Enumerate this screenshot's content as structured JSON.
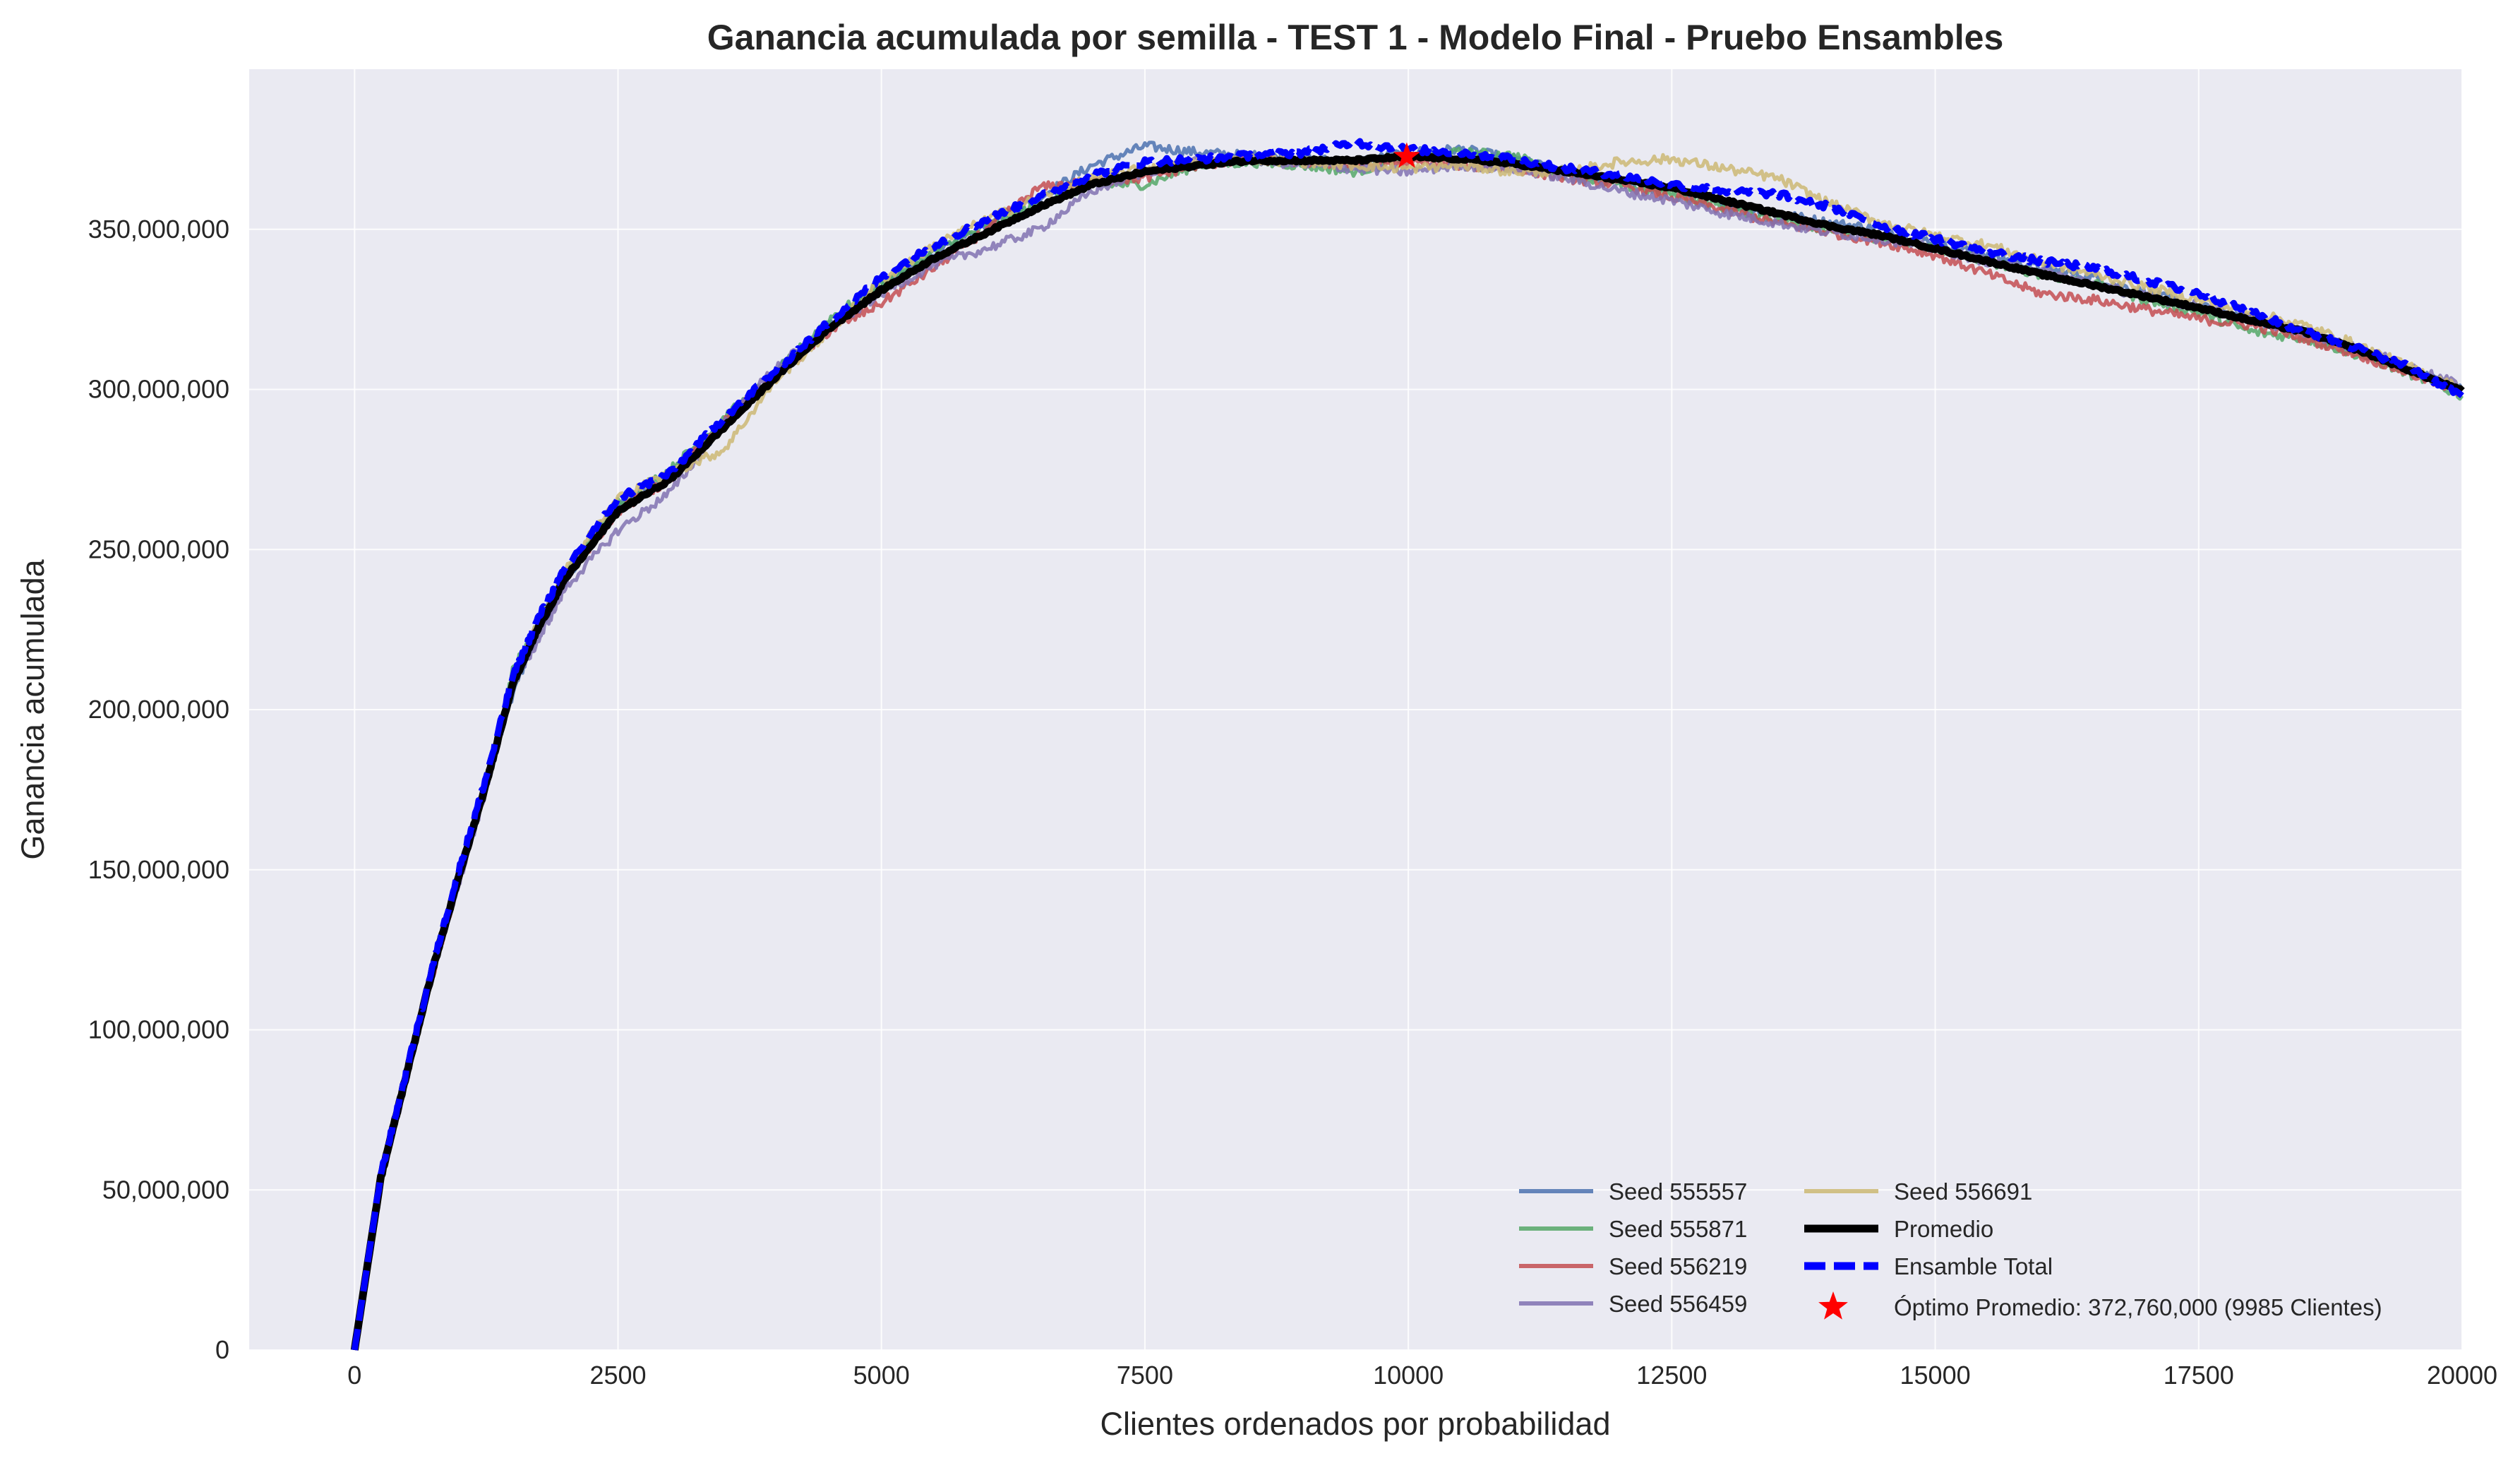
{
  "chart_data": {
    "type": "line",
    "title": "Ganancia acumulada por semilla - TEST 1 - Modelo Final  - Pruebo Ensambles",
    "xlabel": "Clientes ordenados por probabilidad",
    "ylabel": "Ganancia acumulada",
    "xlim": [
      -1000,
      20000
    ],
    "ylim": [
      0,
      400000000
    ],
    "grid": true,
    "legend_position": "lower-right",
    "x_ticks": [
      0,
      2500,
      5000,
      7500,
      10000,
      12500,
      15000,
      17500,
      20000
    ],
    "x_tick_labels": [
      "0",
      "2500",
      "5000",
      "7500",
      "10000",
      "12500",
      "15000",
      "17500",
      "20000"
    ],
    "y_ticks": [
      0,
      50000000,
      100000000,
      150000000,
      200000000,
      250000000,
      300000000,
      350000000
    ],
    "y_tick_labels": [
      "0",
      "50,000,000",
      "100,000,000",
      "150,000,000",
      "200,000,000",
      "250,000,000",
      "300,000,000",
      "350,000,000"
    ],
    "x": [
      0,
      250,
      500,
      750,
      1000,
      1250,
      1500,
      1750,
      2000,
      2500,
      3000,
      3500,
      4000,
      4500,
      5000,
      5500,
      6000,
      6500,
      7000,
      7500,
      8000,
      8500,
      9000,
      9500,
      9985,
      10500,
      11000,
      11500,
      12000,
      12500,
      13000,
      13500,
      14000,
      14500,
      15000,
      15500,
      16000,
      16500,
      17000,
      17500,
      18000,
      18500,
      19000,
      19500,
      20000
    ],
    "series": [
      {
        "name": "Seed 555557",
        "color": "#4C72B0",
        "style": "solid",
        "values": [
          0,
          55000000,
          88000000,
          122000000,
          150000000,
          178000000,
          205000000,
          225000000,
          240000000,
          264000000,
          273000000,
          288000000,
          306000000,
          320000000,
          332000000,
          342000000,
          352000000,
          360000000,
          370000000,
          376000000,
          374000000,
          373000000,
          372000000,
          371000000,
          374000000,
          375000000,
          372000000,
          368000000,
          365000000,
          363000000,
          358000000,
          355000000,
          352000000,
          350000000,
          346000000,
          342000000,
          338000000,
          335000000,
          330000000,
          326000000,
          322000000,
          318000000,
          312000000,
          306000000,
          300000000
        ]
      },
      {
        "name": "Seed 555871",
        "color": "#55A868",
        "style": "solid",
        "values": [
          0,
          54000000,
          87000000,
          121000000,
          149000000,
          177000000,
          212000000,
          228000000,
          243000000,
          265000000,
          275000000,
          291000000,
          305000000,
          322000000,
          333000000,
          343000000,
          351000000,
          358000000,
          364000000,
          364000000,
          370000000,
          371000000,
          370000000,
          368000000,
          372000000,
          374000000,
          373000000,
          367000000,
          364000000,
          361000000,
          357000000,
          353000000,
          350000000,
          347000000,
          344000000,
          340000000,
          336000000,
          333000000,
          328000000,
          324000000,
          318000000,
          316000000,
          311000000,
          305000000,
          298000000
        ]
      },
      {
        "name": "Seed 556219",
        "color": "#C44E52",
        "style": "solid",
        "values": [
          0,
          53000000,
          86000000,
          118000000,
          148000000,
          176000000,
          210000000,
          227000000,
          241000000,
          262000000,
          272000000,
          290000000,
          304000000,
          318000000,
          327000000,
          338000000,
          350000000,
          363000000,
          365000000,
          366000000,
          370000000,
          372000000,
          371000000,
          370000000,
          371000000,
          370000000,
          369000000,
          366000000,
          364000000,
          360000000,
          356000000,
          352000000,
          349000000,
          346000000,
          342000000,
          336000000,
          330000000,
          328000000,
          325000000,
          322000000,
          320000000,
          316000000,
          311000000,
          305000000,
          299000000
        ]
      },
      {
        "name": "Seed 556459",
        "color": "#8172B2",
        "style": "solid",
        "values": [
          0,
          52000000,
          85000000,
          119000000,
          147000000,
          175000000,
          208000000,
          222000000,
          238000000,
          256000000,
          268000000,
          289000000,
          307000000,
          319000000,
          330000000,
          339000000,
          344000000,
          350000000,
          362000000,
          368000000,
          371000000,
          372000000,
          370000000,
          369000000,
          368000000,
          370000000,
          369000000,
          366000000,
          362000000,
          359000000,
          355000000,
          352000000,
          349000000,
          347000000,
          344000000,
          340000000,
          337000000,
          333000000,
          329000000,
          326000000,
          322000000,
          318000000,
          313000000,
          307000000,
          301000000
        ]
      },
      {
        "name": "Seed 556691",
        "color": "#CCB974",
        "style": "solid",
        "values": [
          0,
          54000000,
          87000000,
          120000000,
          150000000,
          178000000,
          207000000,
          228000000,
          244000000,
          266000000,
          274000000,
          281000000,
          303000000,
          318000000,
          334000000,
          345000000,
          353000000,
          360000000,
          366000000,
          369000000,
          371000000,
          372000000,
          371000000,
          370000000,
          369000000,
          370000000,
          368000000,
          368000000,
          371000000,
          372000000,
          369000000,
          366000000,
          358000000,
          352000000,
          348000000,
          345000000,
          340000000,
          336000000,
          332000000,
          328000000,
          324000000,
          320000000,
          314000000,
          307000000,
          300000000
        ]
      },
      {
        "name": "Promedio",
        "color": "#000000",
        "style": "solid-thick",
        "values": [
          0,
          54000000,
          87000000,
          120000000,
          149000000,
          177000000,
          208000000,
          226000000,
          241000000,
          262000000,
          272000000,
          288000000,
          304000000,
          319000000,
          331000000,
          341000000,
          349000000,
          357000000,
          364000000,
          368000000,
          370000000,
          371500000,
          371500000,
          371500000,
          372760000,
          372000000,
          370500000,
          368000000,
          365500000,
          363000000,
          359000000,
          355000000,
          351000000,
          348000000,
          344000000,
          340000000,
          336000000,
          332500000,
          329000000,
          325500000,
          321500000,
          318000000,
          312500000,
          306000000,
          299500000
        ]
      },
      {
        "name": "Ensamble Total",
        "color": "#0000FF",
        "style": "dashed",
        "values": [
          0,
          55000000,
          88000000,
          121000000,
          151000000,
          179000000,
          210000000,
          229000000,
          244000000,
          266000000,
          274000000,
          291000000,
          306000000,
          321000000,
          335000000,
          345000000,
          353000000,
          360000000,
          367000000,
          371000000,
          372000000,
          373000000,
          374000000,
          377000000,
          375000000,
          374000000,
          372000000,
          369000000,
          367000000,
          364000000,
          362000000,
          361000000,
          357000000,
          351000000,
          347000000,
          343000000,
          340000000,
          338000000,
          334000000,
          330000000,
          324000000,
          318000000,
          313000000,
          307000000,
          298000000
        ]
      }
    ],
    "optimum": {
      "name": "Óptimo Promedio: 372,760,000 (9985 Clientes)",
      "x": 9985,
      "y": 372760000,
      "color": "#FF0000",
      "marker": "star"
    }
  }
}
